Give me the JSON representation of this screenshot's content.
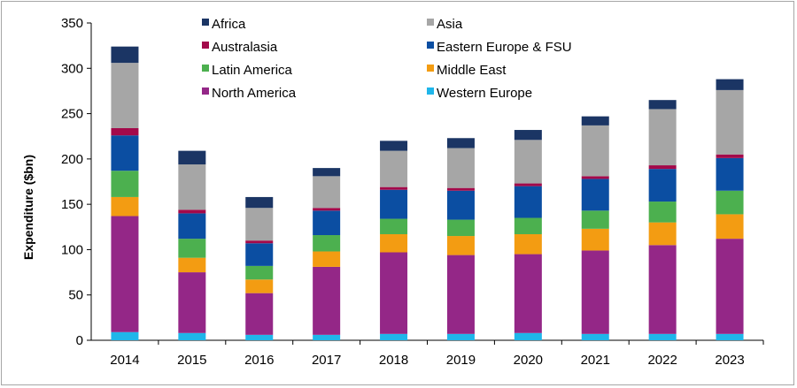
{
  "chart_data": {
    "type": "bar",
    "stacked": true,
    "ylabel": "Expenditure ($bn)",
    "ylim": [
      0,
      350
    ],
    "yticks": [
      0,
      50,
      100,
      150,
      200,
      250,
      300,
      350
    ],
    "grid": false,
    "legend_position": "top",
    "categories": [
      "2014",
      "2015",
      "2016",
      "2017",
      "2018",
      "2019",
      "2020",
      "2021",
      "2022",
      "2023"
    ],
    "series": [
      {
        "name": "Western Europe",
        "color": "#1fb6ea",
        "values": [
          9,
          8,
          6,
          6,
          7,
          7,
          8,
          7,
          7,
          7
        ]
      },
      {
        "name": "North America",
        "color": "#942787",
        "values": [
          128,
          67,
          46,
          75,
          90,
          87,
          87,
          92,
          98,
          105
        ]
      },
      {
        "name": "Middle East",
        "color": "#f39c12",
        "values": [
          21,
          16,
          15,
          17,
          20,
          21,
          22,
          24,
          25,
          27
        ]
      },
      {
        "name": "Latin America",
        "color": "#4cb04f",
        "values": [
          29,
          21,
          15,
          18,
          17,
          18,
          18,
          20,
          23,
          26
        ]
      },
      {
        "name": "Eastern Europe & FSU",
        "color": "#0b4ea2",
        "values": [
          39,
          28,
          25,
          27,
          32,
          32,
          35,
          35,
          36,
          36
        ]
      },
      {
        "name": "Australasia",
        "color": "#a3094a",
        "values": [
          8,
          4,
          3,
          3,
          3,
          3,
          3,
          3,
          4,
          4
        ]
      },
      {
        "name": "Asia",
        "color": "#a6a6a6",
        "values": [
          72,
          50,
          36,
          35,
          40,
          44,
          48,
          56,
          62,
          71
        ]
      },
      {
        "name": "Africa",
        "color": "#1b3564",
        "values": [
          18,
          15,
          12,
          9,
          11,
          11,
          11,
          10,
          10,
          12
        ]
      }
    ],
    "legend_order": [
      "Africa",
      "Asia",
      "Australasia",
      "Eastern Europe & FSU",
      "Latin America",
      "Middle East",
      "North America",
      "Western Europe"
    ]
  }
}
